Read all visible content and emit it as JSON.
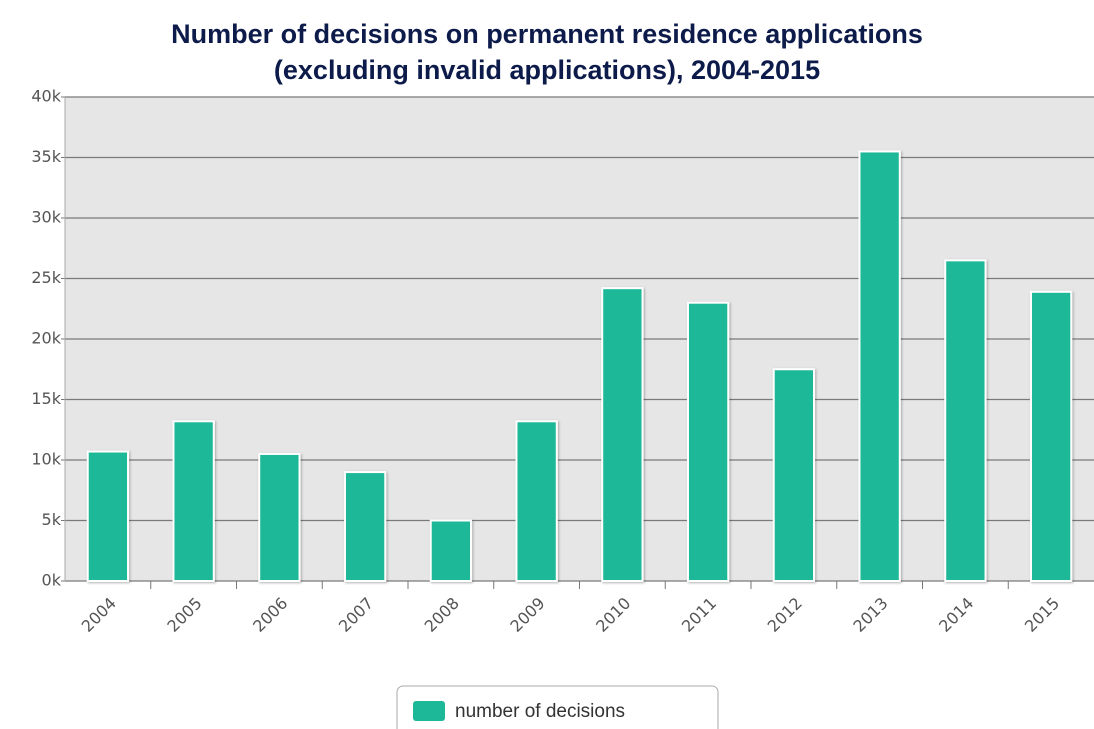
{
  "chart_data": {
    "type": "bar",
    "title": [
      "Number of decisions on permanent residence applications",
      "(excluding invalid applications), 2004-2015"
    ],
    "categories": [
      "2004",
      "2005",
      "2006",
      "2007",
      "2008",
      "2009",
      "2010",
      "2011",
      "2012",
      "2013",
      "2014",
      "2015"
    ],
    "series": [
      {
        "name": "number of decisions",
        "color": "#1db897",
        "values": [
          10700,
          13200,
          10500,
          9000,
          5000,
          13200,
          24200,
          23000,
          17500,
          35500,
          26500,
          23900
        ]
      }
    ],
    "ylim": [
      0,
      40000
    ],
    "yticks": [
      {
        "value": 0,
        "label": "0k"
      },
      {
        "value": 5000,
        "label": "5k"
      },
      {
        "value": 10000,
        "label": "10k"
      },
      {
        "value": 15000,
        "label": "15k"
      },
      {
        "value": 20000,
        "label": "20k"
      },
      {
        "value": 25000,
        "label": "25k"
      },
      {
        "value": 30000,
        "label": "30k"
      },
      {
        "value": 35000,
        "label": "35k"
      },
      {
        "value": 40000,
        "label": "40k"
      }
    ],
    "grid": true,
    "legend": "bottom"
  }
}
